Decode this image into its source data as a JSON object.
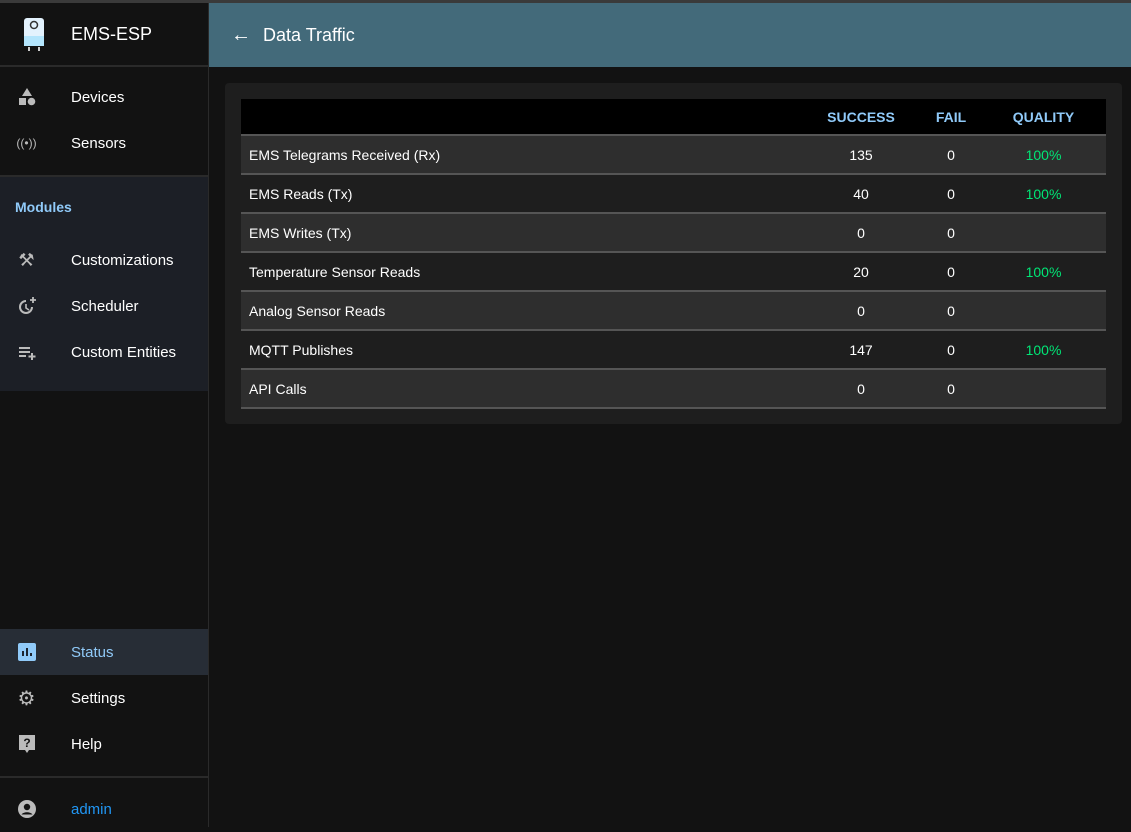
{
  "app": {
    "name": "EMS-ESP"
  },
  "header": {
    "title": "Data Traffic"
  },
  "sidebar": {
    "items": [
      {
        "label": "Devices",
        "icon": "devices-icon"
      },
      {
        "label": "Sensors",
        "icon": "sensors-icon"
      }
    ],
    "modules_label": "Modules",
    "modules": [
      {
        "label": "Customizations",
        "icon": "tools-icon"
      },
      {
        "label": "Scheduler",
        "icon": "scheduler-icon"
      },
      {
        "label": "Custom Entities",
        "icon": "playlist-add-icon"
      }
    ],
    "bottom": [
      {
        "label": "Status",
        "icon": "bar-chart-icon",
        "active": true
      },
      {
        "label": "Settings",
        "icon": "gear-icon"
      },
      {
        "label": "Help",
        "icon": "help-icon"
      }
    ],
    "user": "admin"
  },
  "table": {
    "headers": [
      "",
      "SUCCESS",
      "FAIL",
      "QUALITY"
    ],
    "rows": [
      {
        "name": "EMS Telegrams Received (Rx)",
        "success": "135",
        "fail": "0",
        "quality": "100%"
      },
      {
        "name": "EMS Reads (Tx)",
        "success": "40",
        "fail": "0",
        "quality": "100%"
      },
      {
        "name": "EMS Writes (Tx)",
        "success": "0",
        "fail": "0",
        "quality": ""
      },
      {
        "name": "Temperature Sensor Reads",
        "success": "20",
        "fail": "0",
        "quality": "100%"
      },
      {
        "name": "Analog Sensor Reads",
        "success": "0",
        "fail": "0",
        "quality": ""
      },
      {
        "name": "MQTT Publishes",
        "success": "147",
        "fail": "0",
        "quality": "100%"
      },
      {
        "name": "API Calls",
        "success": "0",
        "fail": "0",
        "quality": ""
      }
    ]
  },
  "colors": {
    "header": "#436a7a",
    "accent": "#90caf9",
    "quality": "#00e676"
  }
}
